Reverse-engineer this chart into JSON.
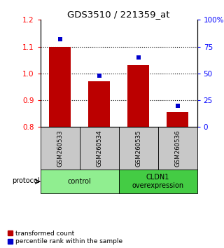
{
  "title": "GDS3510 / 221359_at",
  "samples": [
    "GSM260533",
    "GSM260534",
    "GSM260535",
    "GSM260536"
  ],
  "red_values": [
    1.1,
    0.97,
    1.03,
    0.855
  ],
  "blue_values": [
    82,
    48,
    65,
    20
  ],
  "ylim_left": [
    0.8,
    1.2
  ],
  "ylim_right": [
    0,
    100
  ],
  "yticks_left": [
    0.8,
    0.9,
    1.0,
    1.1,
    1.2
  ],
  "yticks_right": [
    0,
    25,
    50,
    75,
    100
  ],
  "ytick_labels_right": [
    "0",
    "25",
    "50",
    "75",
    "100%"
  ],
  "hlines": [
    0.9,
    1.0,
    1.1
  ],
  "groups": [
    {
      "label": "control",
      "indices": [
        0,
        1
      ],
      "color": "#90EE90"
    },
    {
      "label": "CLDN1\noverexpression",
      "indices": [
        2,
        3
      ],
      "color": "#44CC44"
    }
  ],
  "bar_color": "#BB0000",
  "blue_color": "#0000CC",
  "bar_width": 0.55,
  "protocol_label": "protocol",
  "legend_red": "transformed count",
  "legend_blue": "percentile rank within the sample",
  "background_gray": "#C8C8C8",
  "xlim": [
    -0.5,
    3.5
  ]
}
